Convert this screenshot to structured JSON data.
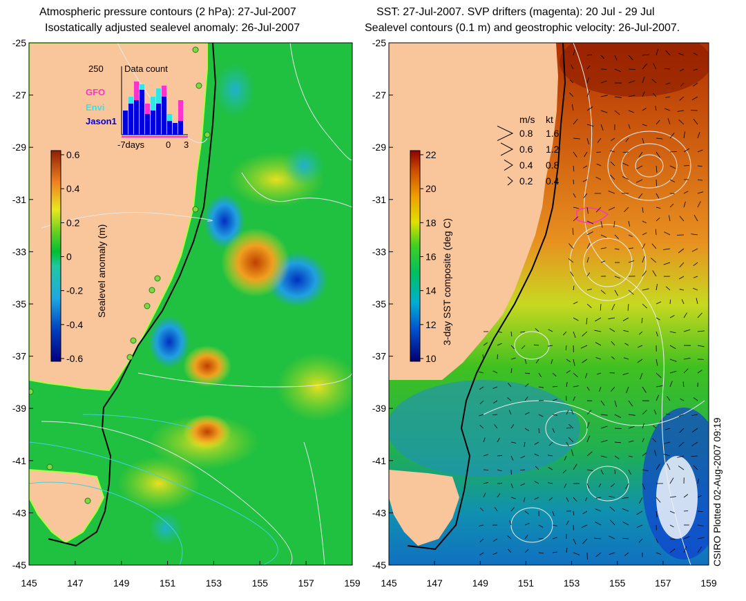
{
  "left_panel": {
    "title_line1": "Atmospheric pressure contours (2 hPa): 27-Jul-2007",
    "title_line2": "Isostatically adjusted sealevel anomaly: 26-Jul-2007",
    "colorbar_label": "Sealevel anomaly (m)",
    "colorbar_ticks": [
      "0.6",
      "0.4",
      "0.2",
      "0",
      "-0.2",
      "-0.4",
      "-0.6"
    ],
    "inset": {
      "max_label": "250",
      "title": "Data count",
      "legend": [
        {
          "label": "GFO",
          "color": "#ff33cc"
        },
        {
          "label": "Envi",
          "color": "#33e6e6"
        },
        {
          "label": "Jason1",
          "color": "#0000dd"
        }
      ],
      "x_ticks": [
        "-7days",
        "0",
        "3"
      ]
    }
  },
  "right_panel": {
    "title_line1": "SST: 27-Jul-2007. SVP drifters (magenta): 20 Jul - 29 Jul",
    "title_line2": "Sealevel contours (0.1 m) and geostrophic velocity: 26-Jul-2007.",
    "colorbar_label": "3-day SST composite (deg C)",
    "colorbar_ticks": [
      "22",
      "20",
      "18",
      "16",
      "14",
      "12",
      "10"
    ],
    "velocity_legend": {
      "headers": [
        "m/s",
        "kt"
      ],
      "rows": [
        {
          "ms": "0.8",
          "kt": "1.6"
        },
        {
          "ms": "0.6",
          "kt": "1.2"
        },
        {
          "ms": "0.4",
          "kt": "0.8"
        },
        {
          "ms": "0.2",
          "kt": "0.4"
        }
      ]
    }
  },
  "axes": {
    "y_ticks": [
      "-25",
      "-27",
      "-29",
      "-31",
      "-33",
      "-35",
      "-37",
      "-39",
      "-41",
      "-43",
      "-45"
    ],
    "x_ticks": [
      "145",
      "147",
      "149",
      "151",
      "153",
      "155",
      "157",
      "159"
    ]
  },
  "credit": "CSIRO Plotted 02-Aug-2007 09:19",
  "colors": {
    "land": "#f9c59b",
    "coast_line": "#000000",
    "sla_ramp": [
      "#000080",
      "#0050d0",
      "#20b0e0",
      "#00c030",
      "#60d030",
      "#e0e020",
      "#f0a020",
      "#c05010",
      "#903000"
    ],
    "sst_ramp": [
      "#000080",
      "#0060d0",
      "#00c0c0",
      "#00c040",
      "#a0e020",
      "#f0e000",
      "#f09000",
      "#c04000",
      "#800000"
    ]
  }
}
